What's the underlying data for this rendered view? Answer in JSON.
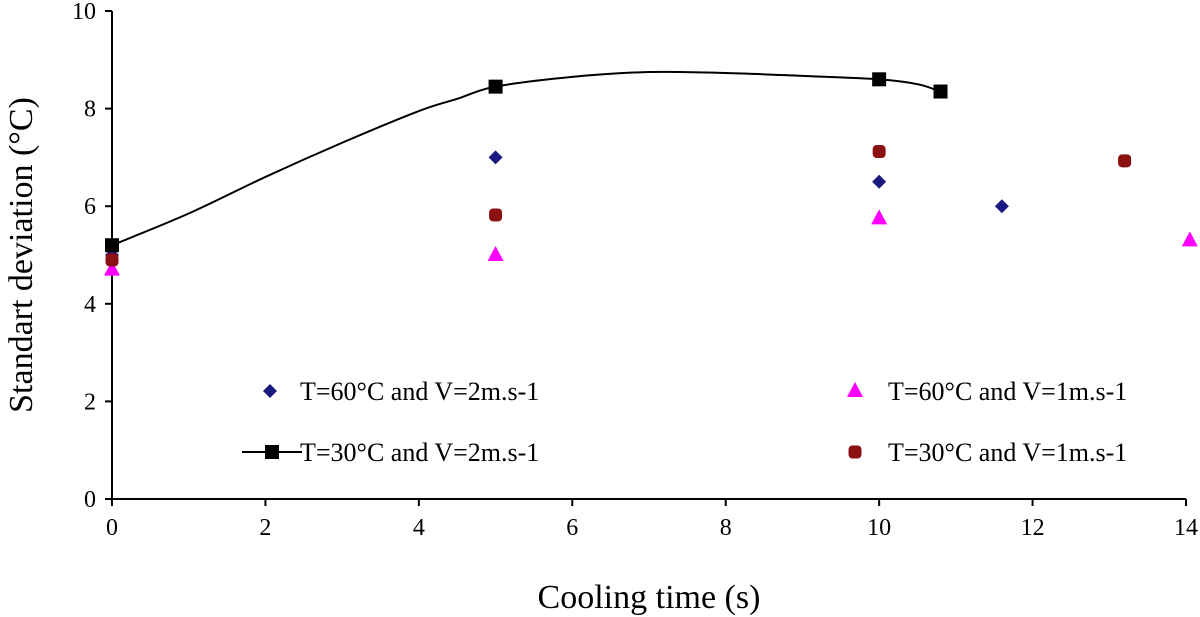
{
  "chart_data": {
    "type": "scatter",
    "title": "",
    "xlabel": "Cooling time (s)",
    "ylabel": "Standart deviation (°C)",
    "xlim": [
      0,
      14
    ],
    "ylim": [
      0,
      10
    ],
    "x_ticks": [
      0,
      2,
      4,
      6,
      8,
      10,
      12,
      14
    ],
    "y_ticks": [
      0,
      2,
      4,
      6,
      8,
      10
    ],
    "grid": false,
    "legend_placement": "bottom",
    "series": [
      {
        "name": "T=60°C and V=2m.s-1",
        "marker": "diamond",
        "line": false,
        "color": "#1a1a80",
        "points": [
          [
            0,
            5.0
          ],
          [
            5,
            7.0
          ],
          [
            10,
            6.5
          ],
          [
            11.6,
            6.0
          ]
        ]
      },
      {
        "name": "T=60°C and V=1m.s-1",
        "marker": "triangle",
        "line": false,
        "color": "#ff00ff",
        "points": [
          [
            0,
            4.7
          ],
          [
            5,
            5.0
          ],
          [
            10,
            5.75
          ],
          [
            14.05,
            5.3
          ]
        ]
      },
      {
        "name": "T=30°C and V=2m.s-1",
        "marker": "square",
        "line": true,
        "color": "#000000",
        "points": [
          [
            0,
            5.2
          ],
          [
            5,
            8.45
          ],
          [
            10,
            8.6
          ],
          [
            10.8,
            8.35
          ]
        ],
        "curve": [
          [
            0,
            5.2
          ],
          [
            1,
            5.85
          ],
          [
            2,
            6.6
          ],
          [
            3,
            7.3
          ],
          [
            4,
            7.95
          ],
          [
            4.5,
            8.2
          ],
          [
            5,
            8.45
          ],
          [
            6,
            8.65
          ],
          [
            7,
            8.75
          ],
          [
            8,
            8.73
          ],
          [
            9,
            8.67
          ],
          [
            10,
            8.6
          ],
          [
            10.5,
            8.5
          ],
          [
            10.8,
            8.35
          ]
        ]
      },
      {
        "name": "T=30°C and V=1m.s-1",
        "marker": "rounded-square",
        "line": false,
        "color": "#8b1010",
        "points": [
          [
            0,
            4.9
          ],
          [
            5,
            5.82
          ],
          [
            10,
            7.12
          ],
          [
            13.2,
            6.93
          ]
        ]
      }
    ],
    "legend_order": [
      0,
      1,
      2,
      3
    ]
  }
}
